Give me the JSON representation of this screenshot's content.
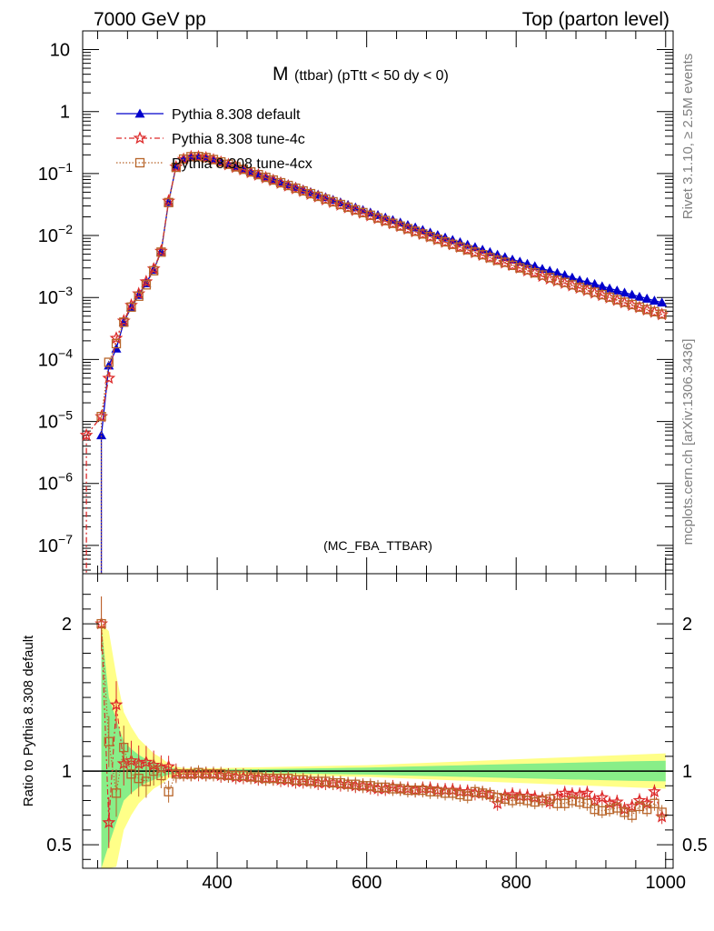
{
  "header": {
    "left": "7000 GeV pp",
    "right": "Top (parton level)"
  },
  "side_labels": {
    "rivet": "Rivet 3.1.10, ≥ 2.5M events",
    "mcplots": "mcplots.cern.ch [arXiv:1306.3436]"
  },
  "colors": {
    "default": "#0000cc",
    "tune4c": "#dd2a2a",
    "tune4cx": "#b8652a",
    "band_yellow": "#ffff88",
    "band_green": "#88ee88"
  },
  "chart_data": [
    {
      "type": "line",
      "title_main": "M",
      "title_rest": "(ttbar) (pTtt < 50 dy < 0)",
      "watermark": "(MC_FBA_TTBAR)",
      "y_scale": "log",
      "xlim": [
        220,
        1010
      ],
      "ylim": [
        3.5e-08,
        20
      ],
      "y_ticks": [
        {
          "v": 1e-07,
          "b": "10",
          "e": "−7"
        },
        {
          "v": 1e-06,
          "b": "10",
          "e": "−6"
        },
        {
          "v": 1e-05,
          "b": "10",
          "e": "−5"
        },
        {
          "v": 0.0001,
          "b": "10",
          "e": "−4"
        },
        {
          "v": 0.001,
          "b": "10",
          "e": "−3"
        },
        {
          "v": 0.01,
          "b": "10",
          "e": "−2"
        },
        {
          "v": 0.1,
          "b": "10",
          "e": "−1"
        },
        {
          "v": 1,
          "b": "1",
          "e": ""
        },
        {
          "v": 10,
          "b": "10",
          "e": ""
        }
      ],
      "legend": [
        {
          "label": "Pythia 8.308 default",
          "style": "default"
        },
        {
          "label": "Pythia 8.308 tune-4c",
          "style": "tune4c"
        },
        {
          "label": "Pythia 8.308 tune-4cx",
          "style": "tune4cx"
        }
      ],
      "series": [
        {
          "name": "Pythia 8.308 default",
          "x": [
            245,
            255,
            265,
            275,
            285,
            295,
            305,
            315,
            325,
            335,
            345,
            355,
            365,
            375,
            385,
            395,
            405,
            415,
            425,
            435,
            445,
            455,
            465,
            475,
            485,
            495,
            505,
            515,
            525,
            535,
            545,
            555,
            565,
            575,
            585,
            595,
            605,
            615,
            625,
            635,
            645,
            655,
            665,
            675,
            685,
            695,
            705,
            715,
            725,
            735,
            745,
            755,
            765,
            775,
            785,
            795,
            805,
            815,
            825,
            835,
            845,
            855,
            865,
            875,
            885,
            895,
            905,
            915,
            925,
            935,
            945,
            955,
            965,
            975,
            985,
            995
          ],
          "y": [
            6e-06,
            8e-05,
            0.00015,
            0.0004,
            0.0007,
            0.0011,
            0.0017,
            0.0028,
            0.0055,
            0.035,
            0.13,
            0.175,
            0.19,
            0.19,
            0.183,
            0.17,
            0.157,
            0.144,
            0.131,
            0.12,
            0.109,
            0.099,
            0.0898,
            0.0815,
            0.074,
            0.0672,
            0.061,
            0.0554,
            0.0503,
            0.0457,
            0.0415,
            0.0377,
            0.0343,
            0.0312,
            0.0284,
            0.0258,
            0.0235,
            0.0214,
            0.0195,
            0.0178,
            0.0162,
            0.0148,
            0.0135,
            0.0123,
            0.0112,
            0.0102,
            0.0093,
            0.0085,
            0.0078,
            0.0071,
            0.0065,
            0.0059,
            0.0054,
            0.0049,
            0.0045,
            0.0041,
            0.0038,
            0.0035,
            0.0032,
            0.0029,
            0.0027,
            0.0025,
            0.0023,
            0.0021,
            0.0019,
            0.00178,
            0.00165,
            0.00152,
            0.0014,
            0.0013,
            0.0012,
            0.00111,
            0.00103,
            0.00096,
            0.00089,
            0.00083
          ]
        },
        {
          "name": "Pythia 8.308 tune-4c",
          "x": [
            225,
            245,
            255,
            265,
            275,
            285,
            295,
            305,
            315,
            325,
            335,
            345,
            355,
            365,
            375,
            385,
            395,
            405,
            415,
            425,
            435,
            445,
            455,
            465,
            475,
            485,
            495,
            505,
            515,
            525,
            535,
            545,
            555,
            565,
            575,
            585,
            595,
            605,
            615,
            625,
            635,
            645,
            655,
            665,
            675,
            685,
            695,
            705,
            715,
            725,
            735,
            745,
            755,
            765,
            775,
            785,
            795,
            805,
            815,
            825,
            835,
            845,
            855,
            865,
            875,
            885,
            895,
            905,
            915,
            925,
            935,
            945,
            955,
            965,
            975,
            985,
            995
          ],
          "y": [
            6e-06,
            1.2e-05,
            5e-05,
            0.00022,
            0.00042,
            0.00075,
            0.00115,
            0.0018,
            0.0029,
            0.0056,
            0.036,
            0.128,
            0.17,
            0.186,
            0.186,
            0.179,
            0.166,
            0.152,
            0.139,
            0.126,
            0.115,
            0.104,
            0.0945,
            0.0855,
            0.0773,
            0.0698,
            0.063,
            0.0569,
            0.0514,
            0.0464,
            0.042,
            0.0379,
            0.0343,
            0.031,
            0.028,
            0.0254,
            0.023,
            0.0208,
            0.0188,
            0.0171,
            0.0155,
            0.014,
            0.0127,
            0.0115,
            0.0105,
            0.0095,
            0.0086,
            0.0078,
            0.0071,
            0.0065,
            0.0059,
            0.0053,
            0.0048,
            0.0044,
            0.004,
            0.0036,
            0.0033,
            0.003,
            0.0027,
            0.0025,
            0.0022,
            0.002,
            0.00185,
            0.0017,
            0.00155,
            0.00142,
            0.0013,
            0.00118,
            0.00108,
            0.00099,
            0.0009,
            0.00082,
            0.00075,
            0.00069,
            0.00063,
            0.00058,
            0.00053
          ]
        },
        {
          "name": "Pythia 8.308 tune-4cx",
          "x": [
            245,
            255,
            265,
            275,
            285,
            295,
            305,
            315,
            325,
            335,
            345,
            355,
            365,
            375,
            385,
            395,
            405,
            415,
            425,
            435,
            445,
            455,
            465,
            475,
            485,
            495,
            505,
            515,
            525,
            535,
            545,
            555,
            565,
            575,
            585,
            595,
            605,
            615,
            625,
            635,
            645,
            655,
            665,
            675,
            685,
            695,
            705,
            715,
            725,
            735,
            745,
            755,
            765,
            775,
            785,
            795,
            805,
            815,
            825,
            835,
            845,
            855,
            865,
            875,
            885,
            895,
            905,
            915,
            925,
            935,
            945,
            955,
            965,
            975,
            985,
            995
          ],
          "y": [
            1.2e-05,
            9e-05,
            0.00018,
            0.0004,
            0.0007,
            0.00105,
            0.0016,
            0.0027,
            0.0054,
            0.034,
            0.126,
            0.171,
            0.187,
            0.188,
            0.181,
            0.168,
            0.154,
            0.141,
            0.128,
            0.117,
            0.106,
            0.096,
            0.0868,
            0.0785,
            0.071,
            0.0641,
            0.058,
            0.0524,
            0.0473,
            0.0428,
            0.0387,
            0.035,
            0.0316,
            0.0286,
            0.0259,
            0.0234,
            0.0212,
            0.0192,
            0.0174,
            0.0157,
            0.0142,
            0.0129,
            0.0117,
            0.0106,
            0.0096,
            0.0087,
            0.0079,
            0.0072,
            0.0065,
            0.0059,
            0.0054,
            0.0049,
            0.0044,
            0.004,
            0.0037,
            0.0033,
            0.003,
            0.0028,
            0.0025,
            0.0023,
            0.0021,
            0.0019,
            0.00175,
            0.0016,
            0.00146,
            0.00134,
            0.00122,
            0.00111,
            0.00101,
            0.00092,
            0.00084,
            0.00077,
            0.0007,
            0.00064,
            0.00059,
            0.00054
          ]
        }
      ]
    },
    {
      "type": "line",
      "ylabel": "Ratio to Pythia 8.308 default",
      "y_scale": "linear",
      "xlim": [
        220,
        1010
      ],
      "ylim": [
        0.34,
        2.34
      ],
      "x_ticks": [
        400,
        600,
        800,
        1000
      ],
      "y_ticks": [
        0.5,
        1,
        2
      ],
      "band": {
        "x": [
          245,
          255,
          265,
          275,
          285,
          295,
          305,
          315,
          325,
          335,
          345,
          355,
          365,
          375,
          385,
          400,
          450,
          500,
          550,
          600,
          650,
          700,
          750,
          800,
          850,
          900,
          950,
          1000
        ],
        "yellow": [
          1.0,
          0.95,
          0.65,
          0.4,
          0.3,
          0.22,
          0.17,
          0.12,
          0.09,
          0.05,
          0.03,
          0.02,
          0.02,
          0.02,
          0.02,
          0.02,
          0.025,
          0.03,
          0.035,
          0.04,
          0.05,
          0.06,
          0.07,
          0.08,
          0.09,
          0.1,
          0.11,
          0.12
        ],
        "green": [
          1.0,
          0.5,
          0.35,
          0.2,
          0.15,
          0.11,
          0.08,
          0.06,
          0.04,
          0.025,
          0.015,
          0.01,
          0.01,
          0.01,
          0.01,
          0.01,
          0.013,
          0.016,
          0.02,
          0.024,
          0.03,
          0.036,
          0.042,
          0.048,
          0.054,
          0.06,
          0.066,
          0.07
        ]
      },
      "series": [
        {
          "name": "Pythia 8.308 tune-4c",
          "x": [
            245,
            255,
            265,
            275,
            285,
            295,
            305,
            315,
            325,
            335,
            345,
            355,
            365,
            375,
            385,
            395,
            405,
            415,
            425,
            435,
            445,
            455,
            465,
            475,
            485,
            495,
            505,
            515,
            525,
            535,
            545,
            555,
            565,
            575,
            585,
            595,
            605,
            615,
            625,
            635,
            645,
            655,
            665,
            675,
            685,
            695,
            705,
            715,
            725,
            735,
            745,
            755,
            765,
            775,
            785,
            795,
            805,
            815,
            825,
            835,
            845,
            855,
            865,
            875,
            885,
            895,
            905,
            915,
            925,
            935,
            945,
            955,
            965,
            975,
            985,
            995
          ],
          "y": [
            2.0,
            0.65,
            1.45,
            1.05,
            1.07,
            1.05,
            1.06,
            1.04,
            1.02,
            1.03,
            0.99,
            0.98,
            0.98,
            0.98,
            0.98,
            0.98,
            0.97,
            0.97,
            0.96,
            0.96,
            0.96,
            0.95,
            0.95,
            0.95,
            0.94,
            0.94,
            0.93,
            0.93,
            0.93,
            0.92,
            0.92,
            0.92,
            0.91,
            0.91,
            0.9,
            0.9,
            0.89,
            0.88,
            0.88,
            0.89,
            0.88,
            0.88,
            0.87,
            0.88,
            0.88,
            0.87,
            0.87,
            0.87,
            0.86,
            0.86,
            0.85,
            0.85,
            0.84,
            0.78,
            0.83,
            0.84,
            0.83,
            0.83,
            0.82,
            0.81,
            0.79,
            0.83,
            0.85,
            0.84,
            0.84,
            0.85,
            0.8,
            0.82,
            0.78,
            0.79,
            0.74,
            0.76,
            0.8,
            0.78,
            0.86,
            0.69
          ]
        },
        {
          "name": "Pythia 8.308 tune-4cx",
          "x": [
            245,
            255,
            265,
            275,
            285,
            295,
            305,
            315,
            325,
            335,
            345,
            355,
            365,
            375,
            385,
            395,
            405,
            415,
            425,
            435,
            445,
            455,
            465,
            475,
            485,
            495,
            505,
            515,
            525,
            535,
            545,
            555,
            565,
            575,
            585,
            595,
            605,
            615,
            625,
            635,
            645,
            655,
            665,
            675,
            685,
            695,
            705,
            715,
            725,
            735,
            745,
            755,
            765,
            775,
            785,
            795,
            805,
            815,
            825,
            835,
            845,
            855,
            865,
            875,
            885,
            895,
            905,
            915,
            925,
            935,
            945,
            955,
            965,
            975,
            985,
            995
          ],
          "y": [
            2.0,
            1.2,
            0.85,
            1.16,
            0.98,
            0.95,
            0.93,
            1.0,
            0.97,
            0.86,
            0.98,
            0.98,
            0.98,
            0.99,
            0.98,
            0.98,
            0.98,
            0.97,
            0.97,
            0.97,
            0.96,
            0.96,
            0.95,
            0.95,
            0.95,
            0.95,
            0.94,
            0.94,
            0.93,
            0.93,
            0.93,
            0.92,
            0.92,
            0.91,
            0.91,
            0.9,
            0.9,
            0.89,
            0.89,
            0.88,
            0.88,
            0.87,
            0.87,
            0.87,
            0.86,
            0.86,
            0.85,
            0.85,
            0.84,
            0.83,
            0.86,
            0.85,
            0.84,
            0.82,
            0.81,
            0.8,
            0.81,
            0.8,
            0.79,
            0.8,
            0.81,
            0.78,
            0.78,
            0.8,
            0.79,
            0.78,
            0.74,
            0.73,
            0.74,
            0.75,
            0.72,
            0.7,
            0.76,
            0.74,
            0.78,
            0.72
          ]
        }
      ]
    }
  ]
}
